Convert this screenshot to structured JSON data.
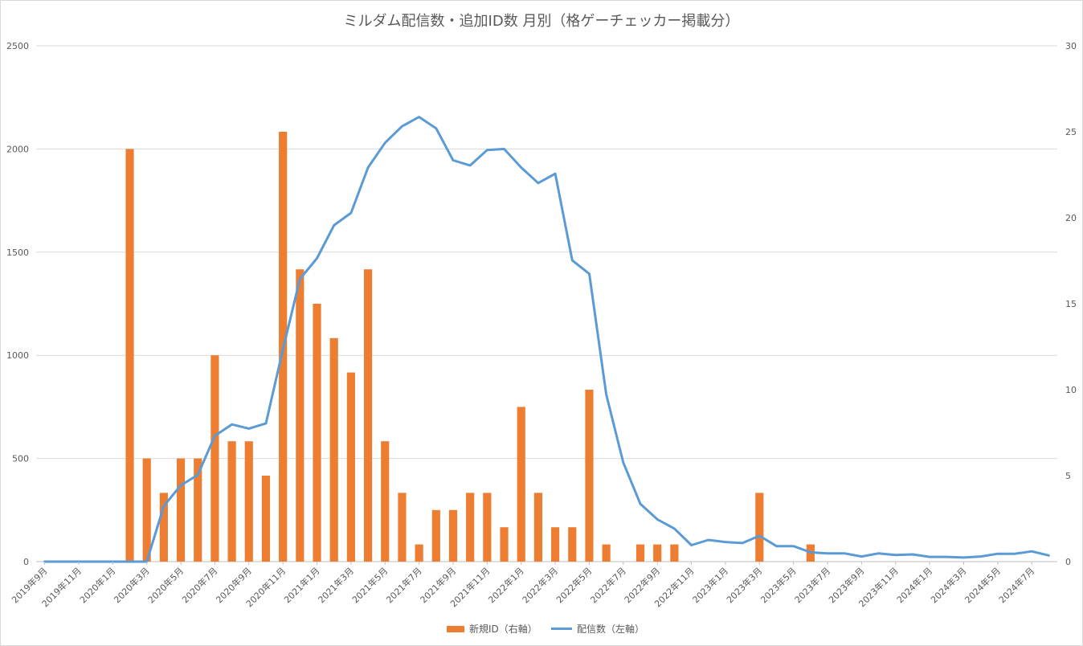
{
  "chart_data": {
    "type": "bar+line",
    "title": "ミルダム配信数・追加ID数 月別（格ゲーチェッカー掲載分）",
    "categories": [
      "2019年9月",
      "2019年10月",
      "2019年11月",
      "2019年12月",
      "2020年1月",
      "2020年2月",
      "2020年3月",
      "2020年4月",
      "2020年5月",
      "2020年6月",
      "2020年7月",
      "2020年8月",
      "2020年9月",
      "2020年10月",
      "2020年11月",
      "2020年12月",
      "2021年1月",
      "2021年2月",
      "2021年3月",
      "2021年4月",
      "2021年5月",
      "2021年6月",
      "2021年7月",
      "2021年8月",
      "2021年9月",
      "2021年10月",
      "2021年11月",
      "2021年12月",
      "2022年1月",
      "2022年2月",
      "2022年3月",
      "2022年4月",
      "2022年5月",
      "2022年6月",
      "2022年7月",
      "2022年8月",
      "2022年9月",
      "2022年10月",
      "2022年11月",
      "2022年12月",
      "2023年1月",
      "2023年2月",
      "2023年3月",
      "2023年4月",
      "2023年5月",
      "2023年6月",
      "2023年7月",
      "2023年8月",
      "2023年9月",
      "2023年10月",
      "2023年11月",
      "2023年12月",
      "2024年1月",
      "2024年2月",
      "2024年3月",
      "2024年4月",
      "2024年5月",
      "2024年6月",
      "2024年7月",
      "2024年8月"
    ],
    "x_tick_labels": [
      "2019年9月",
      "2019年11月",
      "2020年1月",
      "2020年3月",
      "2020年5月",
      "2020年7月",
      "2020年9月",
      "2020年11月",
      "2021年1月",
      "2021年3月",
      "2021年5月",
      "2021年7月",
      "2021年9月",
      "2021年11月",
      "2022年1月",
      "2022年3月",
      "2022年5月",
      "2022年7月",
      "2022年9月",
      "2022年11月",
      "2023年1月",
      "2023年3月",
      "2023年5月",
      "2023年7月",
      "2023年9月",
      "2023年11月",
      "2024年1月",
      "2024年3月",
      "2024年5月",
      "2024年7月"
    ],
    "y_left": {
      "min": 0,
      "max": 2500,
      "ticks": [
        0,
        500,
        1000,
        1500,
        2000,
        2500
      ]
    },
    "y_right": {
      "min": 0,
      "max": 30,
      "ticks": [
        0,
        5,
        10,
        15,
        20,
        25,
        30
      ]
    },
    "grid": true,
    "legend_position": "bottom",
    "series": [
      {
        "name": "新規ID（右軸）",
        "kind": "bar",
        "axis": "right",
        "color": "#ED7D31",
        "values": [
          0,
          0,
          0,
          0,
          0,
          24,
          6,
          4,
          6,
          6,
          12,
          7,
          7,
          5,
          25,
          17,
          15,
          13,
          11,
          17,
          7,
          4,
          1,
          3,
          3,
          4,
          4,
          2,
          9,
          4,
          2,
          2,
          10,
          1,
          0,
          1,
          1,
          1,
          0,
          0,
          0,
          0,
          4,
          0,
          0,
          1,
          0,
          0,
          0,
          0,
          0,
          0,
          0,
          0,
          0,
          0,
          0,
          0,
          0,
          0
        ]
      },
      {
        "name": "配信数（左軸）",
        "kind": "line",
        "axis": "left",
        "color": "#5B9BD5",
        "values": [
          0,
          0,
          0,
          0,
          0,
          0,
          0,
          270,
          370,
          420,
          610,
          665,
          645,
          670,
          1030,
          1370,
          1470,
          1630,
          1690,
          1910,
          2030,
          2110,
          2155,
          2100,
          1945,
          1920,
          1995,
          2000,
          1910,
          1835,
          1880,
          1460,
          1395,
          810,
          480,
          280,
          205,
          160,
          80,
          105,
          95,
          90,
          125,
          75,
          75,
          45,
          40,
          40,
          25,
          40,
          32,
          35,
          23,
          23,
          20,
          25,
          38,
          38,
          50,
          30
        ]
      }
    ]
  }
}
